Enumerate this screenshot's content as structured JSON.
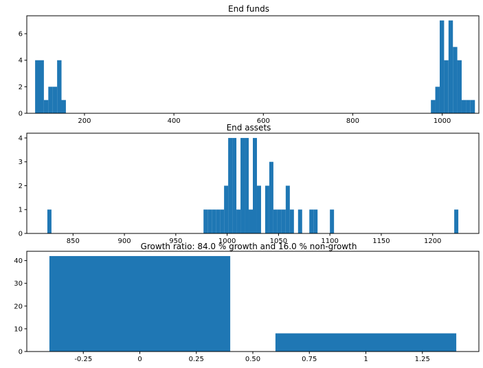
{
  "chart_data": [
    {
      "type": "histogram",
      "title": "End funds",
      "xlabel": "",
      "ylabel": "",
      "xlim": [
        71,
        1082
      ],
      "ylim": [
        0,
        7.35
      ],
      "xticks": [
        200,
        400,
        600,
        800,
        1000
      ],
      "yticks": [
        0,
        2,
        4,
        6
      ],
      "color": "#1f77b4",
      "bin_width": 9.84,
      "bins": [
        {
          "x0": 89.6,
          "count": 4
        },
        {
          "x0": 99.4,
          "count": 4
        },
        {
          "x0": 109.3,
          "count": 1
        },
        {
          "x0": 119.1,
          "count": 2
        },
        {
          "x0": 128.9,
          "count": 2
        },
        {
          "x0": 138.8,
          "count": 4
        },
        {
          "x0": 148.6,
          "count": 1
        },
        {
          "x0": 974.7,
          "count": 1
        },
        {
          "x0": 984.5,
          "count": 2
        },
        {
          "x0": 994.4,
          "count": 7
        },
        {
          "x0": 1004.2,
          "count": 4
        },
        {
          "x0": 1014.1,
          "count": 7
        },
        {
          "x0": 1023.9,
          "count": 5
        },
        {
          "x0": 1033.7,
          "count": 4
        },
        {
          "x0": 1043.6,
          "count": 1
        },
        {
          "x0": 1053.4,
          "count": 1
        },
        {
          "x0": 1063.3,
          "count": 1
        }
      ]
    },
    {
      "type": "histogram",
      "title": "End assets",
      "xlabel": "",
      "ylabel": "",
      "xlim": [
        805,
        1245
      ],
      "ylim": [
        0,
        4.2
      ],
      "xticks": [
        850,
        900,
        950,
        1000,
        1050,
        1100,
        1150,
        1200
      ],
      "yticks": [
        0,
        1,
        2,
        3,
        4
      ],
      "color": "#1f77b4",
      "bin_width": 4.0,
      "bins": [
        {
          "x0": 825.0,
          "count": 1
        },
        {
          "x0": 977.0,
          "count": 1
        },
        {
          "x0": 981.0,
          "count": 1
        },
        {
          "x0": 985.0,
          "count": 1
        },
        {
          "x0": 989.0,
          "count": 1
        },
        {
          "x0": 993.0,
          "count": 1
        },
        {
          "x0": 997.0,
          "count": 2
        },
        {
          "x0": 1001.0,
          "count": 4
        },
        {
          "x0": 1005.0,
          "count": 4
        },
        {
          "x0": 1009.0,
          "count": 1
        },
        {
          "x0": 1013.0,
          "count": 4
        },
        {
          "x0": 1017.0,
          "count": 4
        },
        {
          "x0": 1021.0,
          "count": 1
        },
        {
          "x0": 1025.0,
          "count": 4
        },
        {
          "x0": 1029.0,
          "count": 2
        },
        {
          "x0": 1037.0,
          "count": 2
        },
        {
          "x0": 1041.0,
          "count": 3
        },
        {
          "x0": 1045.0,
          "count": 1
        },
        {
          "x0": 1049.0,
          "count": 1
        },
        {
          "x0": 1053.0,
          "count": 1
        },
        {
          "x0": 1057.0,
          "count": 2
        },
        {
          "x0": 1061.0,
          "count": 1
        },
        {
          "x0": 1069.0,
          "count": 1
        },
        {
          "x0": 1080.0,
          "count": 1
        },
        {
          "x0": 1084.0,
          "count": 1
        },
        {
          "x0": 1100.0,
          "count": 1
        },
        {
          "x0": 1221.0,
          "count": 1
        }
      ]
    },
    {
      "type": "bar",
      "title": "Growth ratio: 84.0 % growth and 16.0 % non-growth",
      "xlabel": "",
      "ylabel": "",
      "xlim": [
        -0.5,
        1.5
      ],
      "ylim": [
        0,
        44.1
      ],
      "xticks": [
        -0.25,
        0.0,
        0.25,
        0.5,
        0.75,
        1.0,
        1.25
      ],
      "yticks": [
        0,
        10,
        20,
        30,
        40
      ],
      "color": "#1f77b4",
      "bar_width": 0.8,
      "x": [
        0,
        1
      ],
      "values": [
        42,
        8
      ]
    }
  ]
}
